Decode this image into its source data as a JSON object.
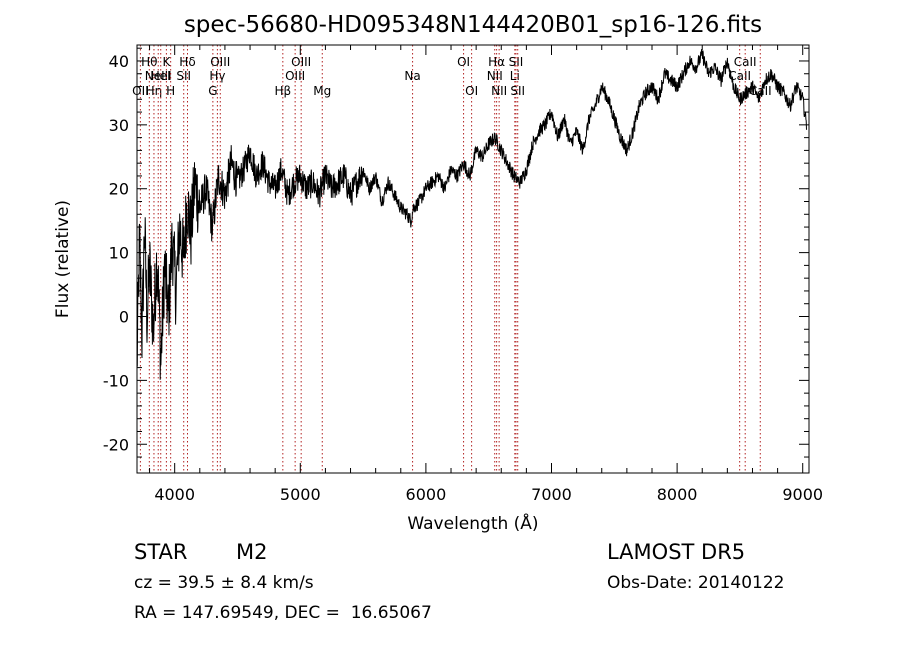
{
  "chart_data": {
    "type": "line",
    "title": "spec-56680-HD095348N144420B01_sp16-126.fits",
    "xlabel": "Wavelength (Å)",
    "ylabel": "Flux (relative)",
    "xlim": [
      3700,
      9050
    ],
    "ylim": [
      -24.5,
      42.5
    ],
    "xticks": [
      4000,
      5000,
      6000,
      7000,
      8000,
      9000
    ],
    "yticks": [
      -20,
      -10,
      0,
      10,
      20,
      30,
      40
    ],
    "grid": false,
    "line_color": "#000000",
    "marker_color": "#b22222",
    "series": [
      {
        "values_x": [
          3700,
          3720,
          3740,
          3760,
          3780,
          3800,
          3830,
          3860,
          3890,
          3920,
          3950,
          3980,
          4010,
          4040,
          4070,
          4100,
          4130,
          4160,
          4200,
          4250,
          4300,
          4350,
          4400,
          4450,
          4500,
          4550,
          4600,
          4650,
          4700,
          4750,
          4800,
          4850,
          4900,
          4950,
          5000,
          5050,
          5100,
          5150,
          5200,
          5250,
          5300,
          5350,
          5400,
          5450,
          5500,
          5550,
          5600,
          5650,
          5700,
          5750,
          5800,
          5850,
          5880,
          5900,
          5950,
          6000,
          6050,
          6100,
          6150,
          6200,
          6250,
          6300,
          6350,
          6400,
          6450,
          6500,
          6550,
          6600,
          6650,
          6700,
          6750,
          6800,
          6850,
          6900,
          6950,
          7000,
          7050,
          7100,
          7150,
          7200,
          7250,
          7300,
          7350,
          7400,
          7450,
          7500,
          7550,
          7600,
          7650,
          7700,
          7750,
          7800,
          7850,
          7900,
          7950,
          8000,
          8050,
          8100,
          8150,
          8200,
          8250,
          8300,
          8350,
          8400,
          8450,
          8500,
          8550,
          8600,
          8650,
          8700,
          8750,
          8800,
          8850,
          8900,
          8950,
          9000,
          9030
        ],
        "values_y": [
          -8,
          12,
          -3,
          14,
          0,
          8,
          -2,
          10,
          -7,
          8,
          0,
          12,
          4,
          14,
          9,
          18,
          13,
          21,
          17,
          20,
          14,
          22,
          19,
          24,
          21,
          23,
          26,
          22,
          24,
          21,
          20,
          23,
          19,
          21,
          22,
          20,
          21,
          19,
          22,
          20,
          21,
          22,
          19,
          21,
          23,
          20,
          22,
          18,
          21,
          19,
          17,
          16,
          15,
          17,
          18,
          20,
          21,
          22,
          20,
          23,
          22,
          24,
          22,
          26,
          25,
          27,
          28,
          26,
          24,
          22,
          21,
          23,
          27,
          29,
          30,
          32,
          28,
          31,
          27,
          29,
          26,
          31,
          33,
          36,
          34,
          31,
          28,
          26,
          29,
          33,
          35,
          36,
          34,
          38,
          37,
          36,
          38,
          40,
          39,
          41,
          38,
          39,
          37,
          40,
          36,
          34,
          35,
          36,
          34,
          37,
          38,
          36,
          35,
          33,
          36,
          34,
          30
        ]
      }
    ],
    "line_markers": [
      {
        "wave": 3727,
        "label": "OII",
        "row": 3
      },
      {
        "wave": 3798,
        "label": "Hθ",
        "row": 1
      },
      {
        "wave": 3835,
        "label": "Hη",
        "row": 3
      },
      {
        "wave": 3869,
        "label": "NeIII",
        "row": 2
      },
      {
        "wave": 3889,
        "label": "HeI",
        "row": 2
      },
      {
        "wave": 3934,
        "label": "K",
        "row": 1
      },
      {
        "wave": 3968,
        "label": "H",
        "row": 3
      },
      {
        "wave": 4072,
        "label": "SII",
        "row": 2
      },
      {
        "wave": 4102,
        "label": "Hδ",
        "row": 1
      },
      {
        "wave": 4304,
        "label": "G",
        "row": 3
      },
      {
        "wave": 4340,
        "label": "Hγ",
        "row": 2
      },
      {
        "wave": 4363,
        "label": "OIII",
        "row": 1
      },
      {
        "wave": 4861,
        "label": "Hβ",
        "row": 3
      },
      {
        "wave": 4959,
        "label": "OIII",
        "row": 2
      },
      {
        "wave": 5007,
        "label": "OIII",
        "row": 1
      },
      {
        "wave": 5175,
        "label": "Mg",
        "row": 3
      },
      {
        "wave": 5894,
        "label": "Na",
        "row": 2
      },
      {
        "wave": 6300,
        "label": "OI",
        "row": 1
      },
      {
        "wave": 6364,
        "label": "OI",
        "row": 3
      },
      {
        "wave": 6548,
        "label": "NII",
        "row": 2
      },
      {
        "wave": 6563,
        "label": "Hα",
        "row": 1
      },
      {
        "wave": 6583,
        "label": "NII",
        "row": 3
      },
      {
        "wave": 6708,
        "label": "Li",
        "row": 2
      },
      {
        "wave": 6717,
        "label": "SII",
        "row": 1
      },
      {
        "wave": 6731,
        "label": "SII",
        "row": 3
      },
      {
        "wave": 8498,
        "label": "CaII",
        "row": 2
      },
      {
        "wave": 8542,
        "label": "CaII",
        "row": 1
      },
      {
        "wave": 8662,
        "label": "CaII",
        "row": 3
      }
    ]
  },
  "info": {
    "object_class": "STAR",
    "subclass": "M2",
    "survey": "LAMOST DR5",
    "redshift": "cz = 39.5 ± 8.4 km/s",
    "obs_date": "Obs-Date: 20140122",
    "coords": "RA = 147.69549, DEC =  16.65067"
  }
}
